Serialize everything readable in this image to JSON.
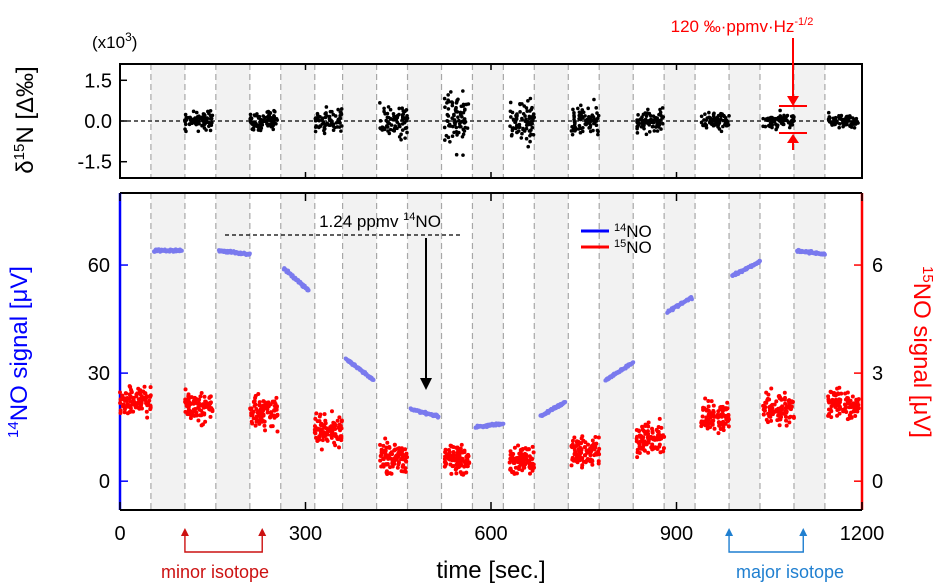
{
  "chart_data": [
    {
      "type": "scatter",
      "title": "",
      "ylabel": "δ15N [Δ‰]",
      "ylabel_parts": {
        "base": "δ",
        "sup": "15",
        "rest": "N [Δ‰]"
      },
      "scale_note": "(x10",
      "scale_note_sup": "3",
      "scale_note_end": ")",
      "ylim": [
        -2.1,
        2.1
      ],
      "yticks": [
        "1.5",
        "0.0",
        "-1.5"
      ],
      "ytick_values": [
        1.5,
        0,
        -1.5
      ],
      "annotation": {
        "text": "120 ‰·ppmv·Hz",
        "sup": "-1/2",
        "color": "#ff0000"
      },
      "point_color": "#000000",
      "series_spread": [
        0.3,
        0.35,
        0.4,
        0.6,
        1.1,
        0.8,
        0.7,
        0.4,
        0.3,
        0.3,
        0.25
      ]
    },
    {
      "type": "scatter",
      "xlabel": "time [sec.]",
      "xlim": [
        0,
        1200
      ],
      "xticks": [
        "0",
        "300",
        "600",
        "900",
        "1200"
      ],
      "xtick_values": [
        0,
        300,
        600,
        900,
        1200
      ],
      "ylabel_left": {
        "sup": "14",
        "rest": "NO signal [μV]",
        "color": "#0000ff"
      },
      "ylabel_right": {
        "sup": "15",
        "rest": "NO signal [μV]",
        "color": "#ff0000"
      },
      "ylim_left": [
        -8,
        80
      ],
      "ylim_right": [
        -0.8,
        8
      ],
      "yticks_left": [
        "0",
        "30",
        "60"
      ],
      "ytick_values_left": [
        0,
        30,
        60
      ],
      "yticks_right": [
        "0",
        "3",
        "6"
      ],
      "ytick_values_right": [
        0,
        3,
        6
      ],
      "legend": [
        {
          "sup": "14",
          "rest": "NO",
          "color": "#0000ff"
        },
        {
          "sup": "15",
          "rest": "NO",
          "color": "#ff0000"
        }
      ],
      "legend_placement": "top-center",
      "annotation": {
        "text": "1.24 ppmv ",
        "sup": "14",
        "end": "NO"
      },
      "series": [
        {
          "name": "14NO",
          "color": "#7a7aee",
          "segments": [
            {
              "x": [
                55,
                100
              ],
              "y": [
                64,
                64
              ]
            },
            {
              "x": [
                160,
                210
              ],
              "y": [
                64,
                63
              ]
            },
            {
              "x": [
                265,
                305
              ],
              "y": [
                59,
                53
              ]
            },
            {
              "x": [
                365,
                410
              ],
              "y": [
                34,
                28
              ]
            },
            {
              "x": [
                470,
                515
              ],
              "y": [
                20,
                18
              ]
            },
            {
              "x": [
                575,
                620
              ],
              "y": [
                15,
                16
              ]
            },
            {
              "x": [
                680,
                720
              ],
              "y": [
                18,
                22
              ]
            },
            {
              "x": [
                785,
                830
              ],
              "y": [
                28,
                33
              ]
            },
            {
              "x": [
                885,
                925
              ],
              "y": [
                47,
                51
              ]
            },
            {
              "x": [
                990,
                1035
              ],
              "y": [
                57,
                61
              ]
            },
            {
              "x": [
                1095,
                1140
              ],
              "y": [
                64,
                63
              ]
            }
          ]
        },
        {
          "name": "15NO",
          "color": "#ff0000",
          "clusters": [
            {
              "x": [
                0,
                50
              ],
              "y": 2.2,
              "spread": 0.45
            },
            {
              "x": [
                105,
                150
              ],
              "y": 2.1,
              "spread": 0.45
            },
            {
              "x": [
                210,
                255
              ],
              "y": 1.95,
              "spread": 0.5
            },
            {
              "x": [
                315,
                360
              ],
              "y": 1.4,
              "spread": 0.45
            },
            {
              "x": [
                420,
                465
              ],
              "y": 0.65,
              "spread": 0.45
            },
            {
              "x": [
                525,
                565
              ],
              "y": 0.6,
              "spread": 0.5
            },
            {
              "x": [
                630,
                670
              ],
              "y": 0.6,
              "spread": 0.45
            },
            {
              "x": [
                730,
                775
              ],
              "y": 0.85,
              "spread": 0.45
            },
            {
              "x": [
                835,
                880
              ],
              "y": 1.2,
              "spread": 0.5
            },
            {
              "x": [
                940,
                985
              ],
              "y": 1.75,
              "spread": 0.5
            },
            {
              "x": [
                1040,
                1090
              ],
              "y": 2.05,
              "spread": 0.5
            },
            {
              "x": [
                1145,
                1195
              ],
              "y": 2.1,
              "spread": 0.45
            }
          ]
        }
      ],
      "shaded_intervals": [
        [
          50,
          105
        ],
        [
          155,
          210
        ],
        [
          260,
          315
        ],
        [
          360,
          415
        ],
        [
          465,
          520
        ],
        [
          570,
          620
        ],
        [
          670,
          725
        ],
        [
          775,
          830
        ],
        [
          880,
          930
        ],
        [
          985,
          1035
        ],
        [
          1090,
          1140
        ]
      ],
      "bottom_labels": {
        "minor": {
          "text": "minor isotope",
          "color": "#cc1111",
          "x_range": [
            105,
            230
          ]
        },
        "major": {
          "text": "major isotope",
          "color": "#1f7fd0",
          "x_range": [
            985,
            1105
          ]
        }
      }
    }
  ]
}
